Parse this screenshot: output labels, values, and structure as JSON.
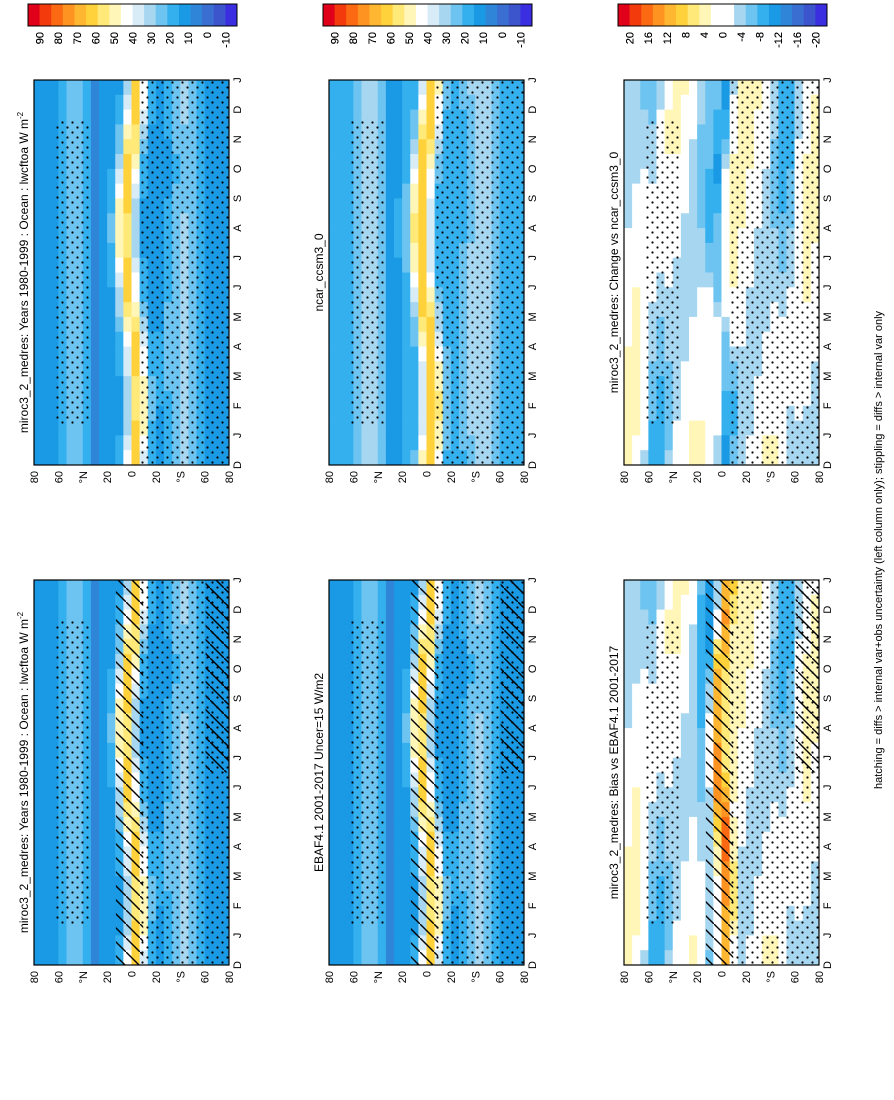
{
  "caption": "hatching = diffs > internal var+obs uncertainty (left column only); stippling = diffs > internal var only",
  "months": [
    "D",
    "J",
    "F",
    "M",
    "A",
    "M",
    "J",
    "J",
    "A",
    "S",
    "O",
    "N",
    "D",
    "J"
  ],
  "latitude_ticks": [
    "80",
    "60",
    "°N",
    "20",
    "0",
    "20",
    "°S",
    "60",
    "80"
  ],
  "colors": {
    "abs_palette": [
      "#e0001a",
      "#f23a0c",
      "#fb6a12",
      "#ff9322",
      "#ffb732",
      "#ffd23c",
      "#ffe978",
      "#fff6b8",
      "#ffffff",
      "#d8ecf8",
      "#a7d6f0",
      "#6ec4f0",
      "#35b0ee",
      "#1a99e4",
      "#2f86d8",
      "#3a6ed0",
      "#3c55cc",
      "#3a2ee0"
    ],
    "diff_palette": [
      "#e0001a",
      "#f23a0c",
      "#fb6a12",
      "#ff9322",
      "#ffb732",
      "#ffd23c",
      "#ffe978",
      "#fff6b8",
      "#ffffff",
      "#ffffff",
      "#a7d6f0",
      "#6ec4f0",
      "#35b0ee",
      "#1a99e4",
      "#2f86d8",
      "#3a6ed0",
      "#3c55cc",
      "#3a2ee0"
    ]
  },
  "chart_data": [
    {
      "id": "model_climatology",
      "type": "heatmap",
      "title": "miroc3_2_medres: Years 1980-1999 : Ocean : lwcftoa W m",
      "title_superscript": "-2",
      "x": "month",
      "y": "latitude",
      "colorbar_ticks": [
        "90",
        "80",
        "70",
        "60",
        "50",
        "40",
        "30",
        "20",
        "10",
        "0",
        "-10"
      ],
      "colorbar_range": [
        -15,
        95
      ],
      "hatching": false,
      "stippling": true
    },
    {
      "id": "ncar_climatology",
      "type": "heatmap",
      "title": "ncar_ccsm3_0",
      "title_superscript": "",
      "x": "month",
      "y": "latitude",
      "colorbar_ticks": [
        "90",
        "80",
        "70",
        "60",
        "50",
        "40",
        "30",
        "20",
        "10",
        "0",
        "-10"
      ],
      "colorbar_range": [
        -15,
        95
      ],
      "hatching": false,
      "stippling": true
    },
    {
      "id": "change_vs_ncar",
      "type": "heatmap",
      "title": "miroc3_2_medres: Change vs ncar_ccsm3_0",
      "title_superscript": "",
      "x": "month",
      "y": "latitude",
      "colorbar_ticks": [
        "20",
        "16",
        "12",
        "8",
        "4",
        "0",
        "-4",
        "-8",
        "-12",
        "-16",
        "-20"
      ],
      "colorbar_range": [
        -22,
        22
      ],
      "hatching": false,
      "stippling": true
    },
    {
      "id": "model_climatology_left",
      "type": "heatmap",
      "title": "miroc3_2_medres: Years 1980-1999 : Ocean : lwcftoa W m",
      "title_superscript": "-2",
      "x": "month",
      "y": "latitude",
      "colorbar_ticks": [
        "90",
        "80",
        "70",
        "60",
        "50",
        "40",
        "30",
        "20",
        "10",
        "0",
        "-10"
      ],
      "colorbar_range": [
        -15,
        95
      ],
      "hatching": true,
      "stippling": true
    },
    {
      "id": "obs_climatology",
      "type": "heatmap",
      "title": "EBAF4.1 2001-2017 Uncer=15 W/m2",
      "title_superscript": "",
      "x": "month",
      "y": "latitude",
      "colorbar_ticks": [
        "90",
        "80",
        "70",
        "60",
        "50",
        "40",
        "30",
        "20",
        "10",
        "0",
        "-10"
      ],
      "colorbar_range": [
        -15,
        95
      ],
      "hatching": true,
      "stippling": true
    },
    {
      "id": "bias_vs_obs",
      "type": "heatmap",
      "title": "miroc3_2_medres: Bias vs EBAF4.1 2001-2017",
      "title_superscript": "",
      "x": "month",
      "y": "latitude",
      "colorbar_ticks": [
        "20",
        "16",
        "12",
        "8",
        "4",
        "0",
        "-4",
        "-8",
        "-12",
        "-16",
        "-20"
      ],
      "colorbar_range": [
        -22,
        22
      ],
      "hatching": true,
      "stippling": true
    }
  ]
}
